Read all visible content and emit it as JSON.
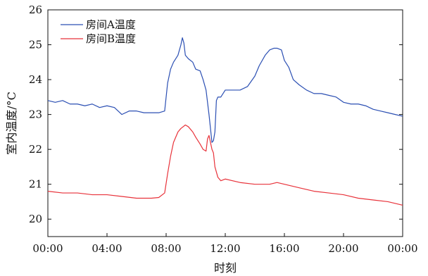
{
  "chart_data": {
    "type": "line",
    "title": "",
    "xlabel": "时刻",
    "ylabel": "室内温度/°C",
    "xlim": [
      0,
      24
    ],
    "ylim": [
      19.5,
      26
    ],
    "x_ticks": [
      0,
      4,
      8,
      12,
      16,
      20,
      24
    ],
    "x_tick_labels": [
      "00:00",
      "04:00",
      "08:00",
      "12:00",
      "16:00",
      "20:00",
      "00:00"
    ],
    "y_ticks": [
      20,
      21,
      22,
      23,
      24,
      25,
      26
    ],
    "y_tick_labels": [
      "20",
      "21",
      "22",
      "23",
      "24",
      "25",
      "26"
    ],
    "grid": false,
    "legend_position": "top-left",
    "series": [
      {
        "name": "房间A温度",
        "color": "#2b4fb3",
        "x": [
          0,
          0.5,
          1,
          1.5,
          2,
          2.5,
          3,
          3.5,
          4,
          4.5,
          5,
          5.5,
          6,
          6.5,
          7,
          7.5,
          7.9,
          8.1,
          8.3,
          8.5,
          8.8,
          9.0,
          9.1,
          9.2,
          9.3,
          9.5,
          9.8,
          10.0,
          10.3,
          10.5,
          10.7,
          10.9,
          11.0,
          11.1,
          11.2,
          11.3,
          11.4,
          11.5,
          11.7,
          12.0,
          12.5,
          13.0,
          13.5,
          14.0,
          14.3,
          14.7,
          15.0,
          15.3,
          15.5,
          15.8,
          16.0,
          16.3,
          16.6,
          17.0,
          17.5,
          18.0,
          18.5,
          19.0,
          19.5,
          20.0,
          20.5,
          21.0,
          21.5,
          22.0,
          22.5,
          23.0,
          23.5,
          24.0
        ],
        "y": [
          23.4,
          23.35,
          23.4,
          23.3,
          23.3,
          23.25,
          23.3,
          23.2,
          23.25,
          23.2,
          23.0,
          23.1,
          23.1,
          23.05,
          23.05,
          23.05,
          23.1,
          23.9,
          24.3,
          24.5,
          24.7,
          25.0,
          25.2,
          25.05,
          24.7,
          24.6,
          24.5,
          24.3,
          24.25,
          24.0,
          23.7,
          23.0,
          22.6,
          22.2,
          22.25,
          22.5,
          23.4,
          23.5,
          23.5,
          23.7,
          23.7,
          23.7,
          23.8,
          24.1,
          24.4,
          24.7,
          24.85,
          24.9,
          24.9,
          24.85,
          24.55,
          24.35,
          24.0,
          23.85,
          23.7,
          23.6,
          23.6,
          23.55,
          23.5,
          23.35,
          23.3,
          23.3,
          23.25,
          23.15,
          23.1,
          23.05,
          23.0,
          22.95
        ]
      },
      {
        "name": "房间B温度",
        "color": "#e8323a",
        "x": [
          0,
          1,
          2,
          3,
          4,
          5,
          6,
          7,
          7.5,
          7.9,
          8.1,
          8.3,
          8.5,
          8.8,
          9.0,
          9.3,
          9.5,
          9.8,
          10.0,
          10.3,
          10.5,
          10.7,
          10.8,
          10.9,
          11.0,
          11.1,
          11.2,
          11.3,
          11.5,
          11.7,
          12.0,
          13.0,
          14.0,
          14.5,
          15.0,
          15.5,
          16.0,
          17.0,
          18.0,
          19.0,
          20.0,
          21.0,
          22.0,
          23.0,
          24.0
        ],
        "y": [
          20.8,
          20.75,
          20.75,
          20.7,
          20.7,
          20.65,
          20.6,
          20.6,
          20.62,
          20.75,
          21.3,
          21.8,
          22.2,
          22.5,
          22.6,
          22.7,
          22.65,
          22.5,
          22.35,
          22.15,
          22.0,
          21.95,
          22.3,
          22.4,
          22.2,
          22.0,
          21.9,
          21.5,
          21.2,
          21.1,
          21.15,
          21.05,
          21.0,
          21.0,
          21.0,
          21.05,
          21.0,
          20.9,
          20.8,
          20.75,
          20.7,
          20.6,
          20.55,
          20.5,
          20.4
        ]
      }
    ]
  }
}
